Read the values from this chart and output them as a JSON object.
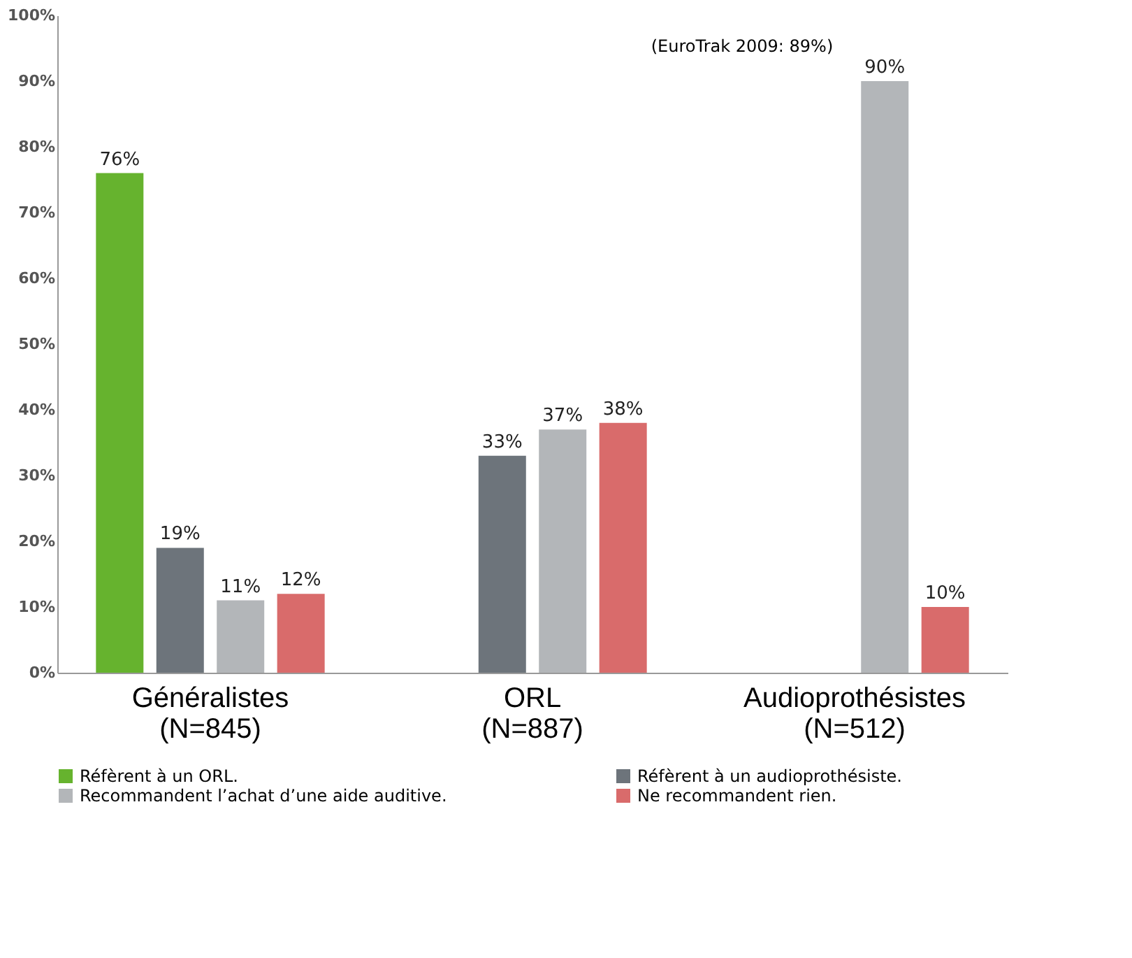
{
  "chart_data": {
    "type": "bar",
    "categories": [
      "Généralistes\n(N=845)",
      "ORL\n(N=887)",
      "Audioprothésistes\n(N=512)"
    ],
    "series": [
      {
        "name": "Réfèrent à un ORL.",
        "color": "#66b32e",
        "values": [
          76,
          null,
          null
        ],
        "value_labels": [
          "76%",
          null,
          null
        ]
      },
      {
        "name": "Réfèrent à un audioprothésiste.",
        "color": "#6d747b",
        "values": [
          19,
          33,
          null
        ],
        "value_labels": [
          "19%",
          "33%",
          null
        ]
      },
      {
        "name": "Recommandent l’achat d’une aide auditive.",
        "color": "#b3b6b9",
        "values": [
          11,
          37,
          90
        ],
        "value_labels": [
          "11%",
          "37%",
          "90%"
        ]
      },
      {
        "name": "Ne recommandent rien.",
        "color": "#d96b6b",
        "values": [
          12,
          38,
          10
        ],
        "value_labels": [
          "12%",
          "38%",
          "10%"
        ]
      }
    ],
    "ylim": [
      0,
      100
    ],
    "yticks": [
      {
        "value": 0,
        "label": "0%"
      },
      {
        "value": 10,
        "label": "10%"
      },
      {
        "value": 20,
        "label": "20%"
      },
      {
        "value": 30,
        "label": "30%"
      },
      {
        "value": 40,
        "label": "40%"
      },
      {
        "value": 50,
        "label": "50%"
      },
      {
        "value": 60,
        "label": "60%"
      },
      {
        "value": 70,
        "label": "70%"
      },
      {
        "value": 80,
        "label": "80%"
      },
      {
        "value": 90,
        "label": "90%"
      },
      {
        "value": 100,
        "label": "100%"
      }
    ],
    "annotations": [
      "(EuroTrak 2009: 89%)"
    ],
    "grid": false,
    "legend": "bottom"
  }
}
